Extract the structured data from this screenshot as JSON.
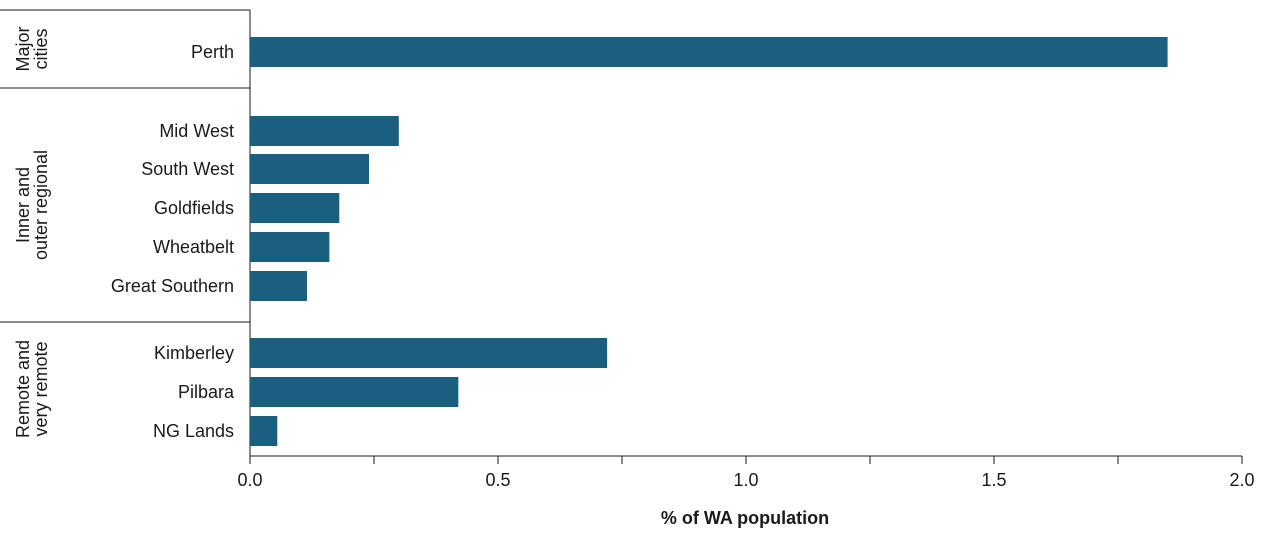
{
  "chart_data": {
    "type": "bar",
    "orientation": "horizontal",
    "xlabel": "% of WA population",
    "xlim": [
      0,
      2.0
    ],
    "xticks": [
      "0.0",
      "0.5",
      "1.0",
      "1.5",
      "2.0"
    ],
    "grid": false,
    "groups": [
      {
        "name": "Major cities",
        "lines": [
          "Major",
          "cities"
        ],
        "categories": [
          "Perth"
        ]
      },
      {
        "name": "Inner and outer regional",
        "lines": [
          "Inner and",
          "outer regional"
        ],
        "categories": [
          "Mid West",
          "South West",
          "Goldfields",
          "Wheatbelt",
          "Great Southern"
        ]
      },
      {
        "name": "Remote and very remote",
        "lines": [
          "Remote and",
          "very remote"
        ],
        "categories": [
          "Kimberley",
          "Pilbara",
          "NG Lands"
        ]
      }
    ],
    "categories": [
      "Perth",
      "Mid West",
      "South West",
      "Goldfields",
      "Wheatbelt",
      "Great Southern",
      "Kimberley",
      "Pilbara",
      "NG Lands"
    ],
    "values": [
      1.85,
      0.3,
      0.24,
      0.18,
      0.16,
      0.115,
      0.72,
      0.42,
      0.055
    ],
    "bar_color": "#1b5f80"
  }
}
